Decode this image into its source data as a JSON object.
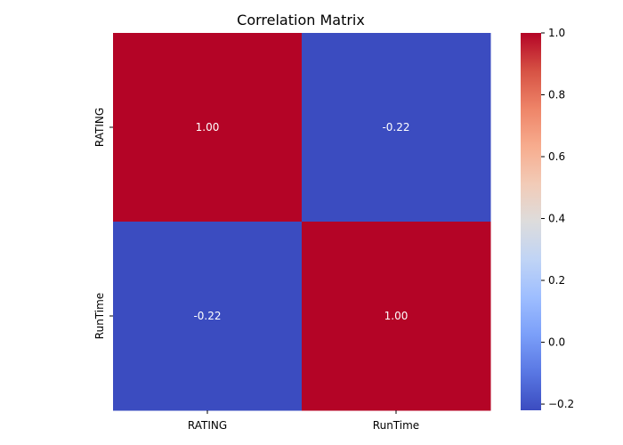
{
  "chart_data": {
    "type": "heatmap",
    "title": "Correlation Matrix",
    "xlabel": "",
    "ylabel": "",
    "x_categories": [
      "RATING",
      "RunTime"
    ],
    "y_categories": [
      "RATING",
      "RunTime"
    ],
    "values": [
      [
        1.0,
        -0.22
      ],
      [
        -0.22,
        1.0
      ]
    ],
    "cell_labels": [
      [
        "1.00",
        "-0.22"
      ],
      [
        "-0.22",
        "1.00"
      ]
    ],
    "colormap": "coolwarm",
    "colorbar": {
      "range": [
        -0.22,
        1.0
      ],
      "ticks": [
        -0.2,
        0.0,
        0.2,
        0.4,
        0.6,
        0.8,
        1.0
      ],
      "tick_labels": [
        "−0.2",
        "0.0",
        "0.2",
        "0.4",
        "0.6",
        "0.8",
        "1.0"
      ]
    },
    "colors": {
      "low": "#3b4cc0",
      "mid": "#dddddd",
      "high": "#b40426"
    },
    "grid": false
  }
}
